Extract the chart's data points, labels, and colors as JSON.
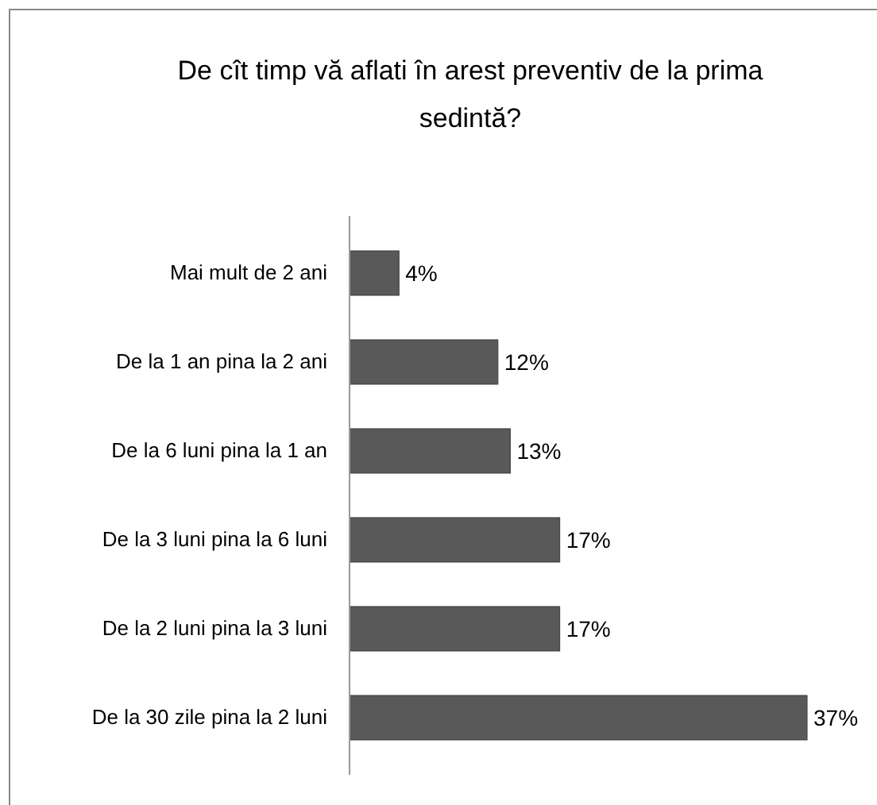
{
  "chart_data": {
    "type": "bar",
    "orientation": "horizontal",
    "title": "De cît timp vă aflati în arest preventiv de la prima sedintă?",
    "categories": [
      "Mai mult de 2 ani",
      "De la 1 an pina la 2 ani",
      "De la 6 luni pina la 1 an",
      "De la 3 luni pina la 6 luni",
      "De la 2 luni pina la 3 luni",
      "De la 30 zile pina la 2 luni"
    ],
    "values": [
      4,
      12,
      13,
      17,
      17,
      37
    ],
    "value_labels": [
      "4%",
      "12%",
      "13%",
      "17%",
      "17%",
      "37%"
    ],
    "color": "#595959"
  }
}
